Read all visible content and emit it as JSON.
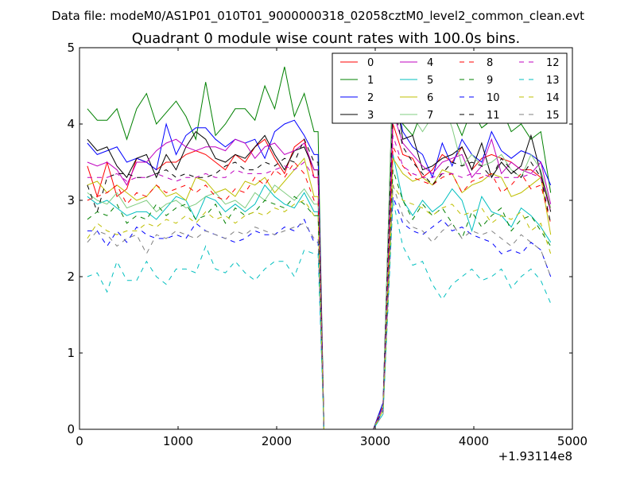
{
  "chart_data": {
    "type": "line",
    "suptitle": "Data file: modeM0/AS1P01_010T01_9000000318_02058cztM0_level2_common_clean.evt",
    "title": "Quadrant 0 module wise count rates with 100.0s bins.",
    "xlabel": "",
    "ylabel": "",
    "x_offset_label": "+1.93114e8",
    "xlim": [
      0,
      5000
    ],
    "ylim": [
      0,
      5
    ],
    "x_ticks": [
      0,
      1000,
      2000,
      3000,
      4000,
      5000
    ],
    "x_tick_labels": [
      "0",
      "1000",
      "2000",
      "3000",
      "4000",
      "5000"
    ],
    "y_ticks": [
      0,
      1,
      2,
      3,
      4,
      5
    ],
    "y_tick_labels": [
      "0",
      "1",
      "2",
      "3",
      "4",
      "5"
    ],
    "grid": false,
    "legend_position": "top-right",
    "x": [
      80,
      180,
      280,
      380,
      480,
      580,
      680,
      780,
      880,
      980,
      1080,
      1180,
      1280,
      1380,
      1480,
      1580,
      1680,
      1780,
      1880,
      1980,
      2080,
      2180,
      2280,
      2380,
      2420,
      2480,
      2580,
      2680,
      2780,
      2880,
      2980,
      3080,
      3180,
      3280,
      3380,
      3480,
      3580,
      3680,
      3780,
      3880,
      3980,
      4080,
      4180,
      4280,
      4380,
      4480,
      4580,
      4680,
      4780
    ],
    "series": [
      {
        "name": "0",
        "color": "#ff0000",
        "dash": "solid",
        "values": [
          3.45,
          3.05,
          3.5,
          3.05,
          3.15,
          3.55,
          3.5,
          3.4,
          3.5,
          3.5,
          3.6,
          3.65,
          3.6,
          3.5,
          3.4,
          3.6,
          3.5,
          3.7,
          3.8,
          3.55,
          3.35,
          3.7,
          3.8,
          3.3,
          3.3,
          0,
          0,
          0,
          0,
          0,
          0,
          0.3,
          4.0,
          3.6,
          3.55,
          3.3,
          3.4,
          3.6,
          3.5,
          3.7,
          3.4,
          3.55,
          3.6,
          3.55,
          3.5,
          3.4,
          3.4,
          3.3,
          2.9
        ]
      },
      {
        "name": "1",
        "color": "#008000",
        "dash": "solid",
        "values": [
          4.2,
          4.05,
          4.05,
          4.2,
          3.8,
          4.2,
          4.4,
          4.0,
          4.15,
          4.3,
          4.1,
          3.8,
          4.55,
          3.85,
          4.0,
          4.2,
          4.2,
          4.05,
          4.5,
          4.2,
          4.75,
          4.1,
          4.4,
          3.9,
          3.9,
          0,
          0,
          0,
          0,
          0,
          0,
          0.35,
          4.7,
          4.0,
          3.85,
          4.2,
          4.35,
          4.4,
          4.15,
          3.85,
          4.2,
          3.95,
          4.05,
          4.2,
          3.9,
          4.0,
          3.8,
          3.9,
          3.1
        ]
      },
      {
        "name": "2",
        "color": "#0000ff",
        "dash": "solid",
        "values": [
          3.75,
          3.6,
          3.65,
          3.7,
          3.5,
          3.55,
          3.5,
          3.4,
          4.0,
          3.6,
          3.85,
          3.95,
          3.95,
          3.8,
          3.7,
          3.8,
          3.75,
          3.8,
          3.55,
          3.9,
          4.0,
          4.05,
          3.85,
          3.6,
          3.6,
          0,
          0,
          0,
          0,
          0,
          0,
          0.35,
          4.55,
          3.9,
          3.7,
          3.6,
          3.3,
          3.75,
          3.45,
          3.8,
          3.6,
          3.5,
          3.9,
          3.65,
          3.55,
          3.65,
          3.6,
          3.5,
          3.2
        ]
      },
      {
        "name": "3",
        "color": "#000000",
        "dash": "solid",
        "values": [
          3.8,
          3.65,
          3.7,
          3.45,
          3.3,
          3.55,
          3.6,
          3.3,
          3.6,
          3.4,
          3.7,
          3.9,
          3.8,
          3.55,
          3.5,
          3.6,
          3.55,
          3.7,
          3.85,
          3.6,
          3.4,
          3.65,
          3.7,
          3.4,
          3.4,
          0,
          0,
          0,
          0,
          0,
          0,
          0.3,
          4.6,
          3.8,
          3.85,
          3.4,
          3.45,
          3.55,
          3.6,
          3.7,
          3.4,
          3.75,
          3.3,
          3.5,
          3.35,
          3.45,
          3.85,
          3.35,
          2.85
        ]
      },
      {
        "name": "4",
        "color": "#bf00bf",
        "dash": "solid",
        "values": [
          3.5,
          3.45,
          3.5,
          3.4,
          3.2,
          3.5,
          3.5,
          3.65,
          3.75,
          3.8,
          3.7,
          3.65,
          3.7,
          3.7,
          3.65,
          3.8,
          3.75,
          3.55,
          3.7,
          3.75,
          3.6,
          3.65,
          3.75,
          3.4,
          3.4,
          0,
          0,
          0,
          0,
          0,
          0,
          0.3,
          4.15,
          3.75,
          3.6,
          3.45,
          3.35,
          3.5,
          3.55,
          3.6,
          3.3,
          3.45,
          3.8,
          3.35,
          3.5,
          3.4,
          3.35,
          3.5,
          2.95
        ]
      },
      {
        "name": "5",
        "color": "#00bfbf",
        "dash": "solid",
        "values": [
          3.05,
          2.95,
          3.0,
          2.9,
          2.8,
          2.85,
          2.85,
          2.75,
          2.9,
          3.05,
          3.0,
          2.75,
          3.05,
          3.0,
          2.85,
          2.95,
          2.85,
          2.95,
          3.2,
          3.05,
          2.95,
          2.9,
          3.1,
          2.85,
          2.85,
          0,
          0,
          0,
          0,
          0,
          0,
          0.25,
          3.6,
          3.0,
          2.8,
          3.0,
          2.85,
          2.95,
          3.15,
          3.0,
          2.6,
          3.05,
          2.85,
          2.8,
          2.65,
          2.9,
          2.8,
          2.65,
          2.45
        ]
      },
      {
        "name": "6",
        "color": "#bfbf00",
        "dash": "solid",
        "values": [
          3.2,
          3.25,
          3.1,
          3.2,
          3.1,
          3.0,
          3.05,
          3.2,
          3.05,
          3.1,
          3.0,
          3.3,
          3.25,
          3.1,
          3.15,
          3.05,
          3.25,
          3.2,
          3.3,
          3.1,
          3.25,
          3.4,
          3.55,
          3.05,
          3.05,
          0,
          0,
          0,
          0,
          0,
          0,
          0.3,
          3.55,
          3.35,
          3.25,
          3.3,
          3.2,
          3.4,
          3.35,
          3.1,
          3.2,
          3.25,
          3.35,
          3.3,
          3.05,
          3.1,
          3.2,
          3.3,
          2.55
        ]
      },
      {
        "name": "7",
        "color": "#80cc80",
        "dash": "solid",
        "values": [
          3.1,
          3.0,
          2.95,
          3.1,
          2.9,
          2.95,
          3.0,
          2.85,
          2.95,
          3.0,
          2.9,
          2.95,
          3.05,
          3.1,
          2.95,
          3.0,
          2.9,
          3.1,
          3.0,
          3.2,
          3.1,
          3.0,
          3.15,
          2.95,
          2.95,
          0,
          0,
          0,
          0,
          0,
          0,
          0.3,
          4.65,
          4.5,
          4.1,
          3.9,
          4.1,
          4.3,
          3.95,
          3.45,
          3.6,
          3.45,
          3.5,
          3.6,
          3.4,
          3.3,
          3.6,
          3.4,
          2.9
        ]
      },
      {
        "name": "8",
        "color": "#ff0000",
        "dash": "dashed",
        "values": [
          3.0,
          3.05,
          3.1,
          3.2,
          2.95,
          3.1,
          3.05,
          3.2,
          3.1,
          3.15,
          3.2,
          3.1,
          3.2,
          3.05,
          3.0,
          3.15,
          3.1,
          3.3,
          3.2,
          3.4,
          3.3,
          3.5,
          3.35,
          3.0,
          3.0,
          0,
          0,
          0,
          0,
          0,
          0,
          0.3,
          3.7,
          3.45,
          3.3,
          3.25,
          3.2,
          3.3,
          3.35,
          3.1,
          3.25,
          3.3,
          3.35,
          3.1,
          3.2,
          3.35,
          3.15,
          3.2,
          2.7
        ]
      },
      {
        "name": "9",
        "color": "#008000",
        "dash": "dashed",
        "values": [
          2.75,
          2.85,
          2.8,
          2.95,
          2.7,
          2.8,
          2.75,
          2.95,
          2.8,
          2.9,
          2.95,
          2.75,
          2.8,
          2.95,
          2.7,
          2.9,
          2.8,
          2.85,
          3.0,
          2.95,
          2.9,
          3.05,
          2.95,
          2.8,
          2.8,
          0,
          0,
          0,
          0,
          0,
          0,
          0.25,
          3.4,
          3.0,
          2.75,
          2.95,
          2.8,
          2.9,
          2.7,
          2.5,
          2.85,
          2.65,
          2.8,
          2.9,
          2.6,
          2.75,
          2.8,
          2.6,
          2.4
        ]
      },
      {
        "name": "10",
        "color": "#0000ff",
        "dash": "dashed",
        "values": [
          2.6,
          2.6,
          2.4,
          2.6,
          2.45,
          2.65,
          2.55,
          2.5,
          2.5,
          2.55,
          2.5,
          2.7,
          2.6,
          2.55,
          2.5,
          2.45,
          2.5,
          2.6,
          2.55,
          2.55,
          2.65,
          2.6,
          2.75,
          2.45,
          2.45,
          0,
          0,
          0,
          0,
          0,
          0,
          0.25,
          3.05,
          2.7,
          2.6,
          2.55,
          2.65,
          2.75,
          2.6,
          2.65,
          2.55,
          2.5,
          2.45,
          2.3,
          2.35,
          2.3,
          2.45,
          2.35,
          2.0
        ]
      },
      {
        "name": "11",
        "color": "#000000",
        "dash": "dashed",
        "values": [
          3.2,
          2.85,
          3.3,
          3.35,
          3.35,
          3.3,
          3.3,
          3.35,
          3.4,
          3.3,
          3.35,
          3.3,
          3.3,
          3.35,
          3.45,
          3.5,
          3.4,
          3.4,
          3.5,
          3.45,
          3.55,
          3.5,
          3.8,
          3.5,
          3.5,
          0,
          0,
          0,
          0,
          0,
          0,
          0.3,
          4.3,
          3.7,
          3.5,
          3.35,
          3.2,
          3.35,
          3.5,
          3.45,
          3.5,
          3.45,
          3.3,
          3.55,
          3.4,
          3.3,
          3.5,
          3.3,
          2.7
        ]
      },
      {
        "name": "12",
        "color": "#bf00bf",
        "dash": "dashed",
        "values": [
          3.3,
          3.3,
          3.3,
          3.35,
          3.25,
          3.3,
          3.3,
          3.35,
          3.3,
          3.25,
          3.3,
          3.3,
          3.35,
          3.3,
          3.3,
          3.4,
          3.35,
          3.35,
          3.35,
          3.4,
          3.45,
          3.4,
          3.5,
          3.3,
          3.3,
          0,
          0,
          0,
          0,
          0,
          0,
          0.3,
          3.85,
          3.45,
          3.35,
          3.3,
          3.3,
          3.35,
          3.35,
          3.3,
          3.35,
          3.35,
          3.3,
          3.3,
          3.3,
          3.3,
          3.35,
          3.3,
          2.85
        ]
      },
      {
        "name": "13",
        "color": "#00bfbf",
        "dash": "dashed",
        "values": [
          2.0,
          2.05,
          1.8,
          2.2,
          1.95,
          1.95,
          2.2,
          2.0,
          1.9,
          2.1,
          2.1,
          2.05,
          2.4,
          2.1,
          2.05,
          2.2,
          2.05,
          1.95,
          2.1,
          2.2,
          2.2,
          2.0,
          2.35,
          2.3,
          2.3,
          0,
          0,
          0,
          0,
          0,
          0,
          0.2,
          3.0,
          2.4,
          2.15,
          2.2,
          1.9,
          1.7,
          1.9,
          2.0,
          2.1,
          1.95,
          2.0,
          2.1,
          1.85,
          2.0,
          2.1,
          1.95,
          1.65
        ]
      },
      {
        "name": "14",
        "color": "#bfbf00",
        "dash": "dashed",
        "values": [
          2.5,
          2.7,
          2.6,
          2.55,
          2.6,
          2.6,
          2.7,
          2.65,
          2.75,
          2.7,
          2.8,
          2.7,
          2.85,
          2.75,
          2.8,
          2.7,
          2.8,
          2.85,
          2.8,
          2.9,
          2.85,
          2.95,
          3.0,
          2.8,
          2.8,
          0,
          0,
          0,
          0,
          0,
          0,
          0.25,
          3.2,
          3.0,
          2.95,
          2.9,
          2.8,
          2.9,
          2.95,
          2.8,
          2.85,
          2.9,
          2.7,
          2.8,
          2.75,
          2.85,
          2.6,
          2.7,
          2.3
        ]
      },
      {
        "name": "15",
        "color": "#808080",
        "dash": "dashed",
        "values": [
          2.45,
          2.6,
          2.55,
          2.4,
          2.5,
          2.55,
          2.3,
          2.55,
          2.5,
          2.6,
          2.55,
          2.5,
          2.6,
          2.55,
          2.5,
          2.6,
          2.55,
          2.65,
          2.6,
          2.55,
          2.6,
          2.65,
          2.7,
          2.5,
          2.5,
          0,
          0,
          0,
          0,
          0,
          0,
          0.2,
          3.2,
          2.8,
          2.65,
          2.6,
          2.45,
          2.6,
          2.7,
          2.5,
          2.6,
          2.55,
          2.6,
          2.5,
          2.4,
          2.55,
          2.45,
          2.35,
          2.0
        ]
      }
    ]
  }
}
